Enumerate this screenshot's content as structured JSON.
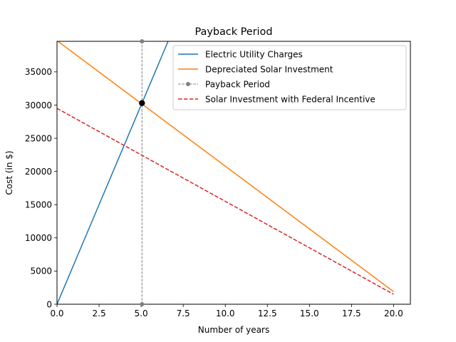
{
  "chart_data": {
    "type": "line",
    "title": "Payback Period",
    "xlabel": "Number of years",
    "ylabel": "Cost (in $)",
    "xlim": [
      0,
      21
    ],
    "ylim": [
      0,
      39600
    ],
    "xticks": [
      0.0,
      2.5,
      5.0,
      7.5,
      10.0,
      12.5,
      15.0,
      17.5,
      20.0
    ],
    "xtick_labels": [
      "0.0",
      "2.5",
      "5.0",
      "7.5",
      "10.0",
      "12.5",
      "15.0",
      "17.5",
      "20.0"
    ],
    "yticks": [
      0,
      5000,
      10000,
      15000,
      20000,
      25000,
      30000,
      35000
    ],
    "ytick_labels": [
      "0",
      "5000",
      "10000",
      "15000",
      "20000",
      "25000",
      "30000",
      "35000"
    ],
    "legend_position": "top-right",
    "grid": false,
    "series": [
      {
        "name": "Electric Utility Charges",
        "color": "#1f77b4",
        "style": "solid",
        "x": [
          0,
          6.6
        ],
        "y": [
          0,
          39600
        ]
      },
      {
        "name": "Depreciated Solar Investment",
        "color": "#ff7f0e",
        "style": "solid",
        "x": [
          0,
          20
        ],
        "y": [
          39700,
          1900
        ]
      },
      {
        "name": "Payback Period",
        "color": "#808080",
        "style": "dashed-marker",
        "x": [
          5.05,
          5.05
        ],
        "y": [
          0,
          39600
        ]
      },
      {
        "name": "Solar Investment with Federal Incentive",
        "color": "#d62728",
        "style": "dashed",
        "x": [
          0,
          20
        ],
        "y": [
          29500,
          1500
        ]
      }
    ],
    "annotations": [
      {
        "type": "point",
        "x": 5.05,
        "y": 30300,
        "color": "#000000"
      }
    ]
  }
}
